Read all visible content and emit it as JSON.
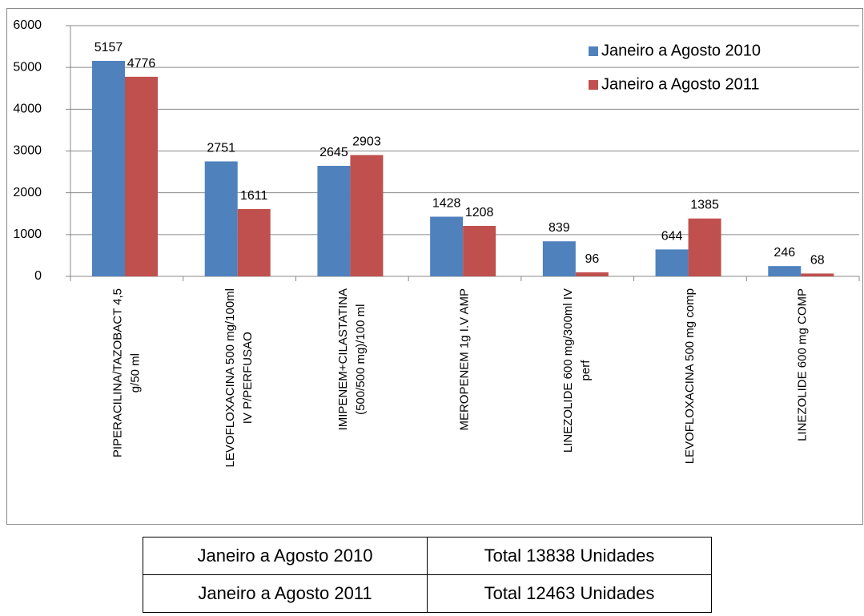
{
  "chart_data": {
    "type": "bar",
    "categories": [
      [
        "PIPERACILINA/TAZOBACT 4,5",
        "g/50 ml"
      ],
      [
        "LEVOFLOXACINA 500 mg/100ml",
        "IV P/PERFUSAO"
      ],
      [
        "IMIPENEM+CILASTATINA",
        "(500/500 mg)/100 ml"
      ],
      [
        "MEROPENEM 1g I.V AMP"
      ],
      [
        "LINEZOLIDE 600 mg/300ml IV",
        "perf"
      ],
      [
        "LEVOFLOXACINA 500 mg comp"
      ],
      [
        "LINEZOLIDE 600 mg COMP"
      ]
    ],
    "series": [
      {
        "name": "Janeiro a Agosto 2010",
        "color": "#4f81bd",
        "values": [
          5157,
          2751,
          2645,
          1428,
          839,
          644,
          246
        ]
      },
      {
        "name": "Janeiro a Agosto 2011",
        "color": "#c0504d",
        "values": [
          4776,
          1611,
          2903,
          1208,
          96,
          1385,
          68
        ]
      }
    ],
    "ylim": [
      0,
      6000
    ],
    "yticks": [
      0,
      1000,
      2000,
      3000,
      4000,
      5000,
      6000
    ],
    "grid": true,
    "legend": "top-right"
  },
  "table": {
    "rows": [
      [
        "Janeiro a Agosto 2010",
        "Total 13838 Unidades"
      ],
      [
        "Janeiro a Agosto 2011",
        "Total 12463 Unidades"
      ]
    ]
  }
}
